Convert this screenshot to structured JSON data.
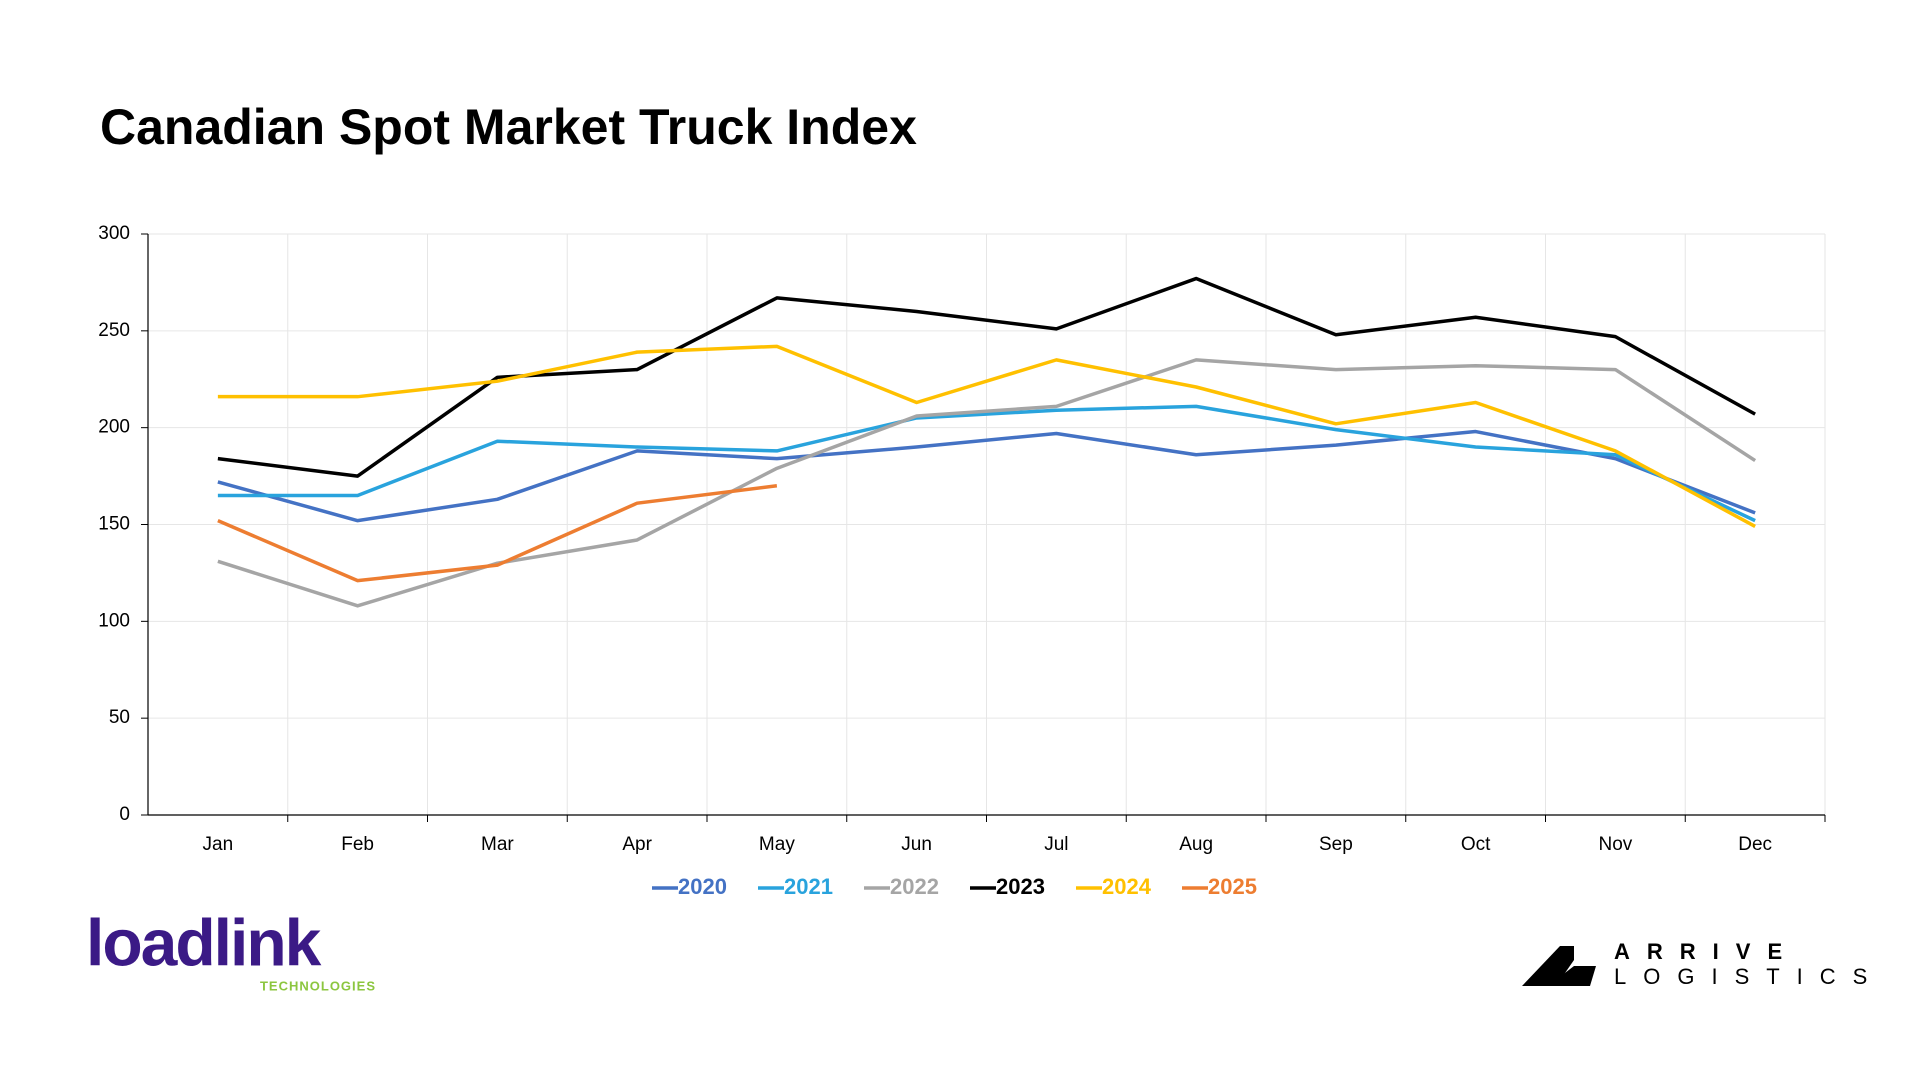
{
  "chart_data": {
    "type": "line",
    "title": "Canadian Spot Market Truck Index",
    "categories": [
      "Jan",
      "Feb",
      "Mar",
      "Apr",
      "May",
      "Jun",
      "Jul",
      "Aug",
      "Sep",
      "Oct",
      "Nov",
      "Dec"
    ],
    "series": [
      {
        "name": "2020",
        "color": "#4472c4",
        "values": [
          172,
          152,
          163,
          188,
          184,
          190,
          197,
          186,
          191,
          198,
          184,
          156
        ]
      },
      {
        "name": "2021",
        "color": "#29a3dd",
        "values": [
          165,
          165,
          193,
          190,
          188,
          205,
          209,
          211,
          199,
          190,
          186,
          152
        ]
      },
      {
        "name": "2022",
        "color": "#a5a5a5",
        "values": [
          131,
          108,
          130,
          142,
          179,
          206,
          211,
          235,
          230,
          232,
          230,
          183
        ]
      },
      {
        "name": "2023",
        "color": "#000000",
        "values": [
          184,
          175,
          226,
          230,
          267,
          260,
          251,
          277,
          248,
          257,
          247,
          207
        ]
      },
      {
        "name": "2024",
        "color": "#ffc000",
        "values": [
          216,
          216,
          224,
          239,
          242,
          213,
          235,
          221,
          202,
          213,
          188,
          149
        ]
      },
      {
        "name": "2025",
        "color": "#ed7d31",
        "values": [
          152,
          121,
          129,
          161,
          170,
          null,
          null,
          null,
          null,
          null,
          null,
          null
        ]
      }
    ],
    "ylim": [
      0,
      300
    ],
    "yticks": [
      0,
      50,
      100,
      150,
      200,
      250,
      300
    ],
    "grid": true
  },
  "logos": {
    "left": "loadlink",
    "left_sub": "TECHNOLOGIES",
    "right_top": "ARRIVE",
    "right_bottom": "LOGISTICS"
  }
}
